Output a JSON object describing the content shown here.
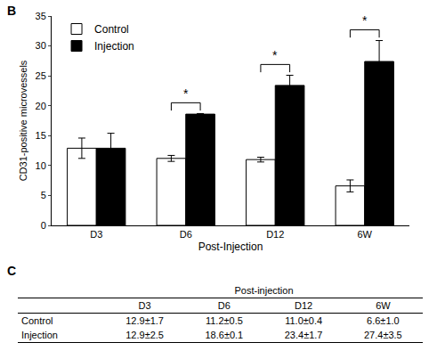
{
  "chart_data": {
    "type": "bar",
    "label": "B",
    "x_label": "Post-Injection",
    "y_label": "CD31-positive microvessels",
    "categories": [
      "D3",
      "D6",
      "D12",
      "6W"
    ],
    "series": [
      {
        "name": "Control",
        "color": "#ffffff",
        "values": [
          12.9,
          11.2,
          11.0,
          6.6
        ],
        "errors": [
          1.7,
          0.5,
          0.4,
          1.0
        ]
      },
      {
        "name": "Injection",
        "color": "#000000",
        "values": [
          12.9,
          18.6,
          23.4,
          27.4
        ],
        "errors": [
          2.5,
          0.1,
          1.7,
          3.5
        ]
      }
    ],
    "ylim": [
      0,
      35
    ],
    "yticks": [
      0,
      5,
      10,
      15,
      20,
      25,
      30,
      35
    ],
    "grid": false,
    "legend": "upper left",
    "annotations": [
      {
        "category": "D6",
        "text": "*"
      },
      {
        "category": "D12",
        "text": "*"
      },
      {
        "category": "6W",
        "text": "*"
      }
    ]
  },
  "table": {
    "label": "C",
    "title": "Post-injection",
    "columns": [
      "D3",
      "D6",
      "D12",
      "6W"
    ],
    "rows": [
      [
        "Control",
        "12.9±1.7",
        "11.2±0.5",
        "11.0±0.4",
        "6.6±1.0"
      ],
      [
        "Injection",
        "12.9±2.5",
        "18.6±0.1",
        "23.4±1.7",
        "27.4±3.5"
      ]
    ]
  }
}
